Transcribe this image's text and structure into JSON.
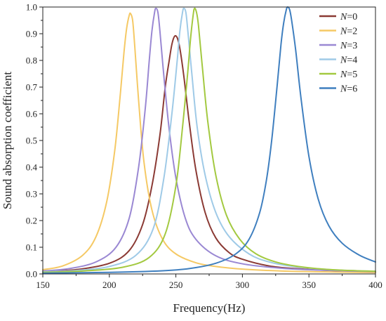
{
  "chart_data": {
    "type": "line",
    "title": "",
    "xlabel": "Frequency(Hz)",
    "ylabel": "Sound absorption coefficient",
    "xlim": [
      150,
      400
    ],
    "ylim": [
      0.0,
      1.0
    ],
    "x_ticks": [
      150,
      200,
      250,
      300,
      350,
      400
    ],
    "x_tick_labels": [
      "150",
      "200",
      "250",
      "300",
      "350",
      "400"
    ],
    "y_ticks": [
      0.0,
      0.1,
      0.2,
      0.3,
      0.4,
      0.5,
      0.6,
      0.7,
      0.8,
      0.9,
      1.0
    ],
    "y_tick_labels": [
      "0.0",
      "0.1",
      "0.2",
      "0.3",
      "0.4",
      "0.5",
      "0.6",
      "0.7",
      "0.8",
      "0.9",
      "1.0"
    ],
    "grid": false,
    "legend_position": "top-right",
    "series": [
      {
        "name": "N=0",
        "name_var": "N",
        "name_val": "=0",
        "color": "#8B3A34",
        "x": [
          150,
          175,
          200,
          215,
          225,
          232,
          238,
          242,
          245,
          247,
          249,
          251,
          253,
          256,
          260,
          265,
          272,
          280,
          290,
          300,
          320,
          340,
          370,
          400
        ],
        "y": [
          0.009,
          0.016,
          0.04,
          0.088,
          0.185,
          0.33,
          0.52,
          0.7,
          0.8,
          0.86,
          0.89,
          0.885,
          0.845,
          0.74,
          0.57,
          0.39,
          0.23,
          0.135,
          0.08,
          0.055,
          0.03,
          0.02,
          0.012,
          0.008
        ]
      },
      {
        "name": "N=2",
        "name_var": "N",
        "name_val": "=2",
        "color": "#F5C965",
        "x": [
          150,
          165,
          180,
          190,
          198,
          204,
          208,
          211,
          213,
          215,
          216,
          217.5,
          219,
          222,
          226,
          232,
          240,
          250,
          265,
          280,
          300,
          330,
          360,
          400
        ],
        "y": [
          0.016,
          0.03,
          0.07,
          0.14,
          0.27,
          0.46,
          0.66,
          0.83,
          0.92,
          0.97,
          0.975,
          0.95,
          0.86,
          0.65,
          0.42,
          0.24,
          0.13,
          0.075,
          0.042,
          0.028,
          0.018,
          0.011,
          0.008,
          0.005
        ]
      },
      {
        "name": "N=3",
        "name_var": "N",
        "name_val": "=3",
        "color": "#9A88D3",
        "x": [
          150,
          170,
          190,
          205,
          215,
          222,
          227,
          230,
          232,
          234,
          235,
          236.5,
          238,
          241,
          245,
          250,
          257,
          265,
          280,
          300,
          330,
          360,
          400
        ],
        "y": [
          0.011,
          0.02,
          0.045,
          0.1,
          0.21,
          0.4,
          0.62,
          0.8,
          0.91,
          0.98,
          0.995,
          0.98,
          0.91,
          0.74,
          0.54,
          0.36,
          0.21,
          0.13,
          0.068,
          0.038,
          0.021,
          0.014,
          0.009
        ]
      },
      {
        "name": "N=4",
        "name_var": "N",
        "name_val": "=4",
        "color": "#9FCAE7",
        "x": [
          150,
          175,
          200,
          220,
          233,
          241,
          247,
          251,
          253,
          255,
          256,
          257.5,
          259,
          262,
          266,
          272,
          280,
          290,
          305,
          320,
          340,
          370,
          400
        ],
        "y": [
          0.008,
          0.013,
          0.028,
          0.07,
          0.17,
          0.36,
          0.6,
          0.8,
          0.91,
          0.98,
          0.995,
          0.98,
          0.91,
          0.75,
          0.55,
          0.37,
          0.23,
          0.14,
          0.075,
          0.045,
          0.027,
          0.015,
          0.01
        ]
      },
      {
        "name": "N=5",
        "name_var": "N",
        "name_val": "=5",
        "color": "#A3C940",
        "x": [
          150,
          180,
          210,
          230,
          242,
          250,
          255,
          259,
          261,
          263,
          264,
          265.5,
          267,
          270,
          274,
          280,
          288,
          298,
          310,
          325,
          345,
          370,
          400
        ],
        "y": [
          0.006,
          0.011,
          0.025,
          0.062,
          0.15,
          0.33,
          0.55,
          0.76,
          0.88,
          0.97,
          0.995,
          0.98,
          0.93,
          0.77,
          0.57,
          0.37,
          0.22,
          0.13,
          0.076,
          0.045,
          0.026,
          0.015,
          0.01
        ]
      },
      {
        "name": "N=6",
        "name_var": "N",
        "name_val": "=6",
        "color": "#3F7FBF",
        "x": [
          150,
          200,
          240,
          260,
          280,
          295,
          305,
          313,
          318,
          322,
          326,
          329,
          331,
          333,
          334,
          335.5,
          337,
          340,
          344,
          350,
          357,
          365,
          375,
          388,
          400
        ],
        "y": [
          0.003,
          0.006,
          0.012,
          0.02,
          0.04,
          0.075,
          0.13,
          0.23,
          0.35,
          0.5,
          0.7,
          0.86,
          0.94,
          0.99,
          1.0,
          0.99,
          0.95,
          0.84,
          0.66,
          0.44,
          0.28,
          0.18,
          0.115,
          0.07,
          0.045
        ]
      }
    ]
  }
}
